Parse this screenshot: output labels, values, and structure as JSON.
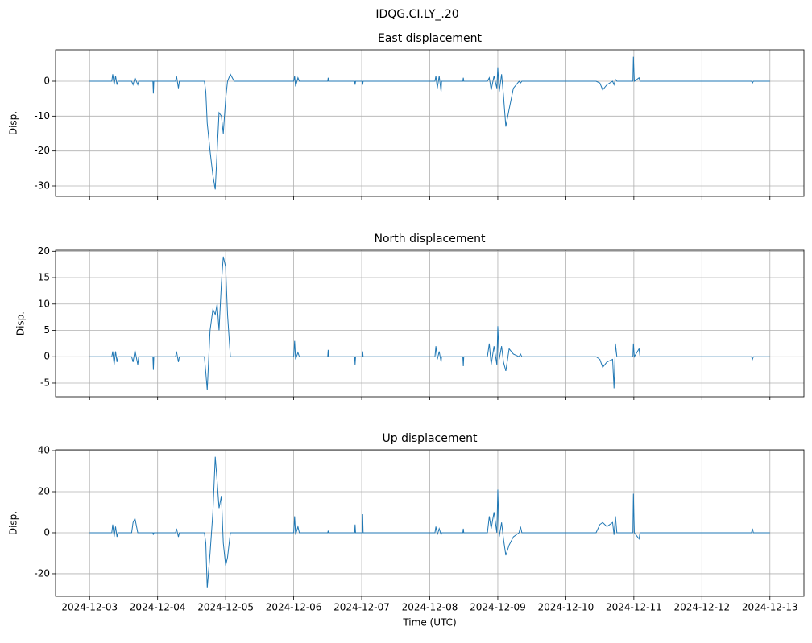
{
  "title": "IDQG.CI.LY_.20",
  "chart_data": [
    {
      "type": "line",
      "title": "East displacement",
      "ylabel": "Disp.",
      "grid": true,
      "xlim": [
        "2024-12-02T12:00",
        "2024-12-13T12:00"
      ],
      "xticks": [
        "2024-12-03",
        "2024-12-04",
        "2024-12-05",
        "2024-12-06",
        "2024-12-07",
        "2024-12-08",
        "2024-12-09",
        "2024-12-10",
        "2024-12-11",
        "2024-12-12",
        "2024-12-13"
      ],
      "ylim": [
        -33,
        9
      ],
      "yticks": [
        -30,
        -20,
        -10,
        0
      ],
      "x": [
        "2024-12-03T00:00",
        "2024-12-03T07:50",
        "2024-12-03T08:10",
        "2024-12-03T08:40",
        "2024-12-03T09:10",
        "2024-12-03T09:40",
        "2024-12-03T10:00",
        "2024-12-03T14:50",
        "2024-12-03T15:20",
        "2024-12-03T16:00",
        "2024-12-03T17:00",
        "2024-12-03T17:20",
        "2024-12-03T22:20",
        "2024-12-03T22:30",
        "2024-12-03T22:40",
        "2024-12-04T06:20",
        "2024-12-04T06:40",
        "2024-12-04T07:20",
        "2024-12-04T07:40",
        "2024-12-04T16:30",
        "2024-12-04T17:00",
        "2024-12-04T17:30",
        "2024-12-04T18:30",
        "2024-12-04T19:30",
        "2024-12-04T20:20",
        "2024-12-04T21:00",
        "2024-12-04T21:40",
        "2024-12-04T22:30",
        "2024-12-04T23:10",
        "2024-12-05T00:00",
        "2024-12-05T00:40",
        "2024-12-05T01:40",
        "2024-12-05T03:00",
        "2024-12-06T00:00",
        "2024-12-06T00:20",
        "2024-12-06T00:40",
        "2024-12-06T01:30",
        "2024-12-06T02:00",
        "2024-12-06T12:00",
        "2024-12-06T12:10",
        "2024-12-06T12:20",
        "2024-12-06T21:30",
        "2024-12-06T21:40",
        "2024-12-06T21:50",
        "2024-12-07T00:10",
        "2024-12-07T00:20",
        "2024-12-07T00:30",
        "2024-12-08T01:50",
        "2024-12-08T02:10",
        "2024-12-08T02:40",
        "2024-12-08T03:20",
        "2024-12-08T04:00",
        "2024-12-08T04:10",
        "2024-12-08T11:40",
        "2024-12-08T11:50",
        "2024-12-08T12:00",
        "2024-12-08T20:20",
        "2024-12-08T21:00",
        "2024-12-08T21:40",
        "2024-12-08T22:40",
        "2024-12-08T23:40",
        "2024-12-09T00:00",
        "2024-12-09T00:30",
        "2024-12-09T01:20",
        "2024-12-09T02:00",
        "2024-12-09T02:50",
        "2024-12-09T04:00",
        "2024-12-09T05:30",
        "2024-12-09T07:30",
        "2024-12-09T08:00",
        "2024-12-09T08:30",
        "2024-12-10T10:40",
        "2024-12-10T12:00",
        "2024-12-10T13:00",
        "2024-12-10T14:30",
        "2024-12-10T16:30",
        "2024-12-10T17:00",
        "2024-12-10T17:30",
        "2024-12-10T18:00",
        "2024-12-10T23:40",
        "2024-12-10T23:50",
        "2024-12-11T00:10",
        "2024-12-11T01:50",
        "2024-12-11T02:10",
        "2024-12-12T17:30",
        "2024-12-12T17:50",
        "2024-12-12T18:10",
        "2024-12-13T00:00"
      ],
      "series": [
        {
          "color": "#1f77b4",
          "values": [
            0,
            0,
            2,
            -1,
            1.5,
            -1,
            0,
            0,
            -1,
            1,
            -1,
            0,
            0,
            -3.5,
            0,
            0,
            1.5,
            -2,
            0,
            0,
            -3,
            -12,
            -20,
            -27,
            -31,
            -20,
            -9,
            -10,
            -15,
            -5,
            0,
            2,
            0,
            0,
            1.5,
            -1.5,
            1,
            0,
            0,
            1,
            0,
            0,
            -1,
            0,
            0,
            -1,
            0,
            0,
            1.5,
            -2,
            1.5,
            -3,
            0,
            0,
            1,
            0,
            0,
            1,
            -2.5,
            1.5,
            -2,
            4,
            -3,
            2,
            -4,
            -13,
            -8,
            -2,
            0,
            -0.5,
            0,
            0,
            -0.5,
            -2.5,
            -1,
            0,
            -1,
            0.5,
            0,
            0,
            7,
            0,
            1,
            0,
            0,
            -0.5,
            0,
            0
          ]
        }
      ]
    },
    {
      "type": "line",
      "title": "North displacement",
      "ylabel": "Disp.",
      "grid": true,
      "xlim": [
        "2024-12-02T12:00",
        "2024-12-13T12:00"
      ],
      "xticks": [
        "2024-12-03",
        "2024-12-04",
        "2024-12-05",
        "2024-12-06",
        "2024-12-07",
        "2024-12-08",
        "2024-12-09",
        "2024-12-10",
        "2024-12-11",
        "2024-12-12",
        "2024-12-13"
      ],
      "ylim": [
        -7.6,
        20.2
      ],
      "yticks": [
        -5,
        0,
        5,
        10,
        15,
        20
      ],
      "x": [
        "2024-12-03T00:00",
        "2024-12-03T07:50",
        "2024-12-03T08:10",
        "2024-12-03T08:40",
        "2024-12-03T09:10",
        "2024-12-03T09:40",
        "2024-12-03T10:00",
        "2024-12-03T14:50",
        "2024-12-03T15:20",
        "2024-12-03T16:00",
        "2024-12-03T17:00",
        "2024-12-03T17:20",
        "2024-12-03T22:20",
        "2024-12-03T22:30",
        "2024-12-03T22:40",
        "2024-12-04T06:20",
        "2024-12-04T06:40",
        "2024-12-04T07:20",
        "2024-12-04T07:40",
        "2024-12-04T16:30",
        "2024-12-04T17:00",
        "2024-12-04T17:30",
        "2024-12-04T18:30",
        "2024-12-04T19:30",
        "2024-12-04T20:20",
        "2024-12-04T21:00",
        "2024-12-04T21:40",
        "2024-12-04T22:30",
        "2024-12-04T23:10",
        "2024-12-05T00:00",
        "2024-12-05T00:40",
        "2024-12-05T01:40",
        "2024-12-05T03:00",
        "2024-12-06T00:00",
        "2024-12-06T00:20",
        "2024-12-06T00:40",
        "2024-12-06T01:30",
        "2024-12-06T02:00",
        "2024-12-06T12:00",
        "2024-12-06T12:10",
        "2024-12-06T12:20",
        "2024-12-06T21:30",
        "2024-12-06T21:40",
        "2024-12-06T21:50",
        "2024-12-07T00:10",
        "2024-12-07T00:20",
        "2024-12-07T00:30",
        "2024-12-08T01:50",
        "2024-12-08T02:10",
        "2024-12-08T02:40",
        "2024-12-08T03:20",
        "2024-12-08T04:00",
        "2024-12-08T04:10",
        "2024-12-08T11:40",
        "2024-12-08T11:50",
        "2024-12-08T12:00",
        "2024-12-08T20:20",
        "2024-12-08T21:00",
        "2024-12-08T21:40",
        "2024-12-08T22:40",
        "2024-12-08T23:40",
        "2024-12-09T00:00",
        "2024-12-09T00:30",
        "2024-12-09T01:20",
        "2024-12-09T02:00",
        "2024-12-09T02:50",
        "2024-12-09T04:00",
        "2024-12-09T05:30",
        "2024-12-09T07:30",
        "2024-12-09T08:00",
        "2024-12-09T08:30",
        "2024-12-10T10:40",
        "2024-12-10T12:00",
        "2024-12-10T13:00",
        "2024-12-10T14:30",
        "2024-12-10T16:30",
        "2024-12-10T17:00",
        "2024-12-10T17:30",
        "2024-12-10T18:00",
        "2024-12-10T23:40",
        "2024-12-10T23:50",
        "2024-12-11T00:10",
        "2024-12-11T01:50",
        "2024-12-11T02:10",
        "2024-12-12T17:30",
        "2024-12-12T17:50",
        "2024-12-12T18:10",
        "2024-12-13T00:00"
      ],
      "series": [
        {
          "color": "#1f77b4",
          "values": [
            0,
            0,
            1,
            -1.5,
            1,
            -1,
            0,
            0,
            -1,
            1.2,
            -1.5,
            0,
            0,
            -2.5,
            0,
            0,
            1,
            -1,
            0,
            0,
            -3,
            -6.3,
            5,
            9,
            8,
            10,
            5,
            14,
            19,
            17,
            8,
            0,
            0,
            0,
            3,
            -0.5,
            0.8,
            0,
            0,
            1.3,
            0,
            0,
            -1.5,
            0,
            0,
            1,
            0,
            0,
            2,
            -0.5,
            1,
            -1,
            0,
            0,
            -1.8,
            0,
            0,
            2.5,
            -1.5,
            2,
            -1.5,
            5.8,
            -0.5,
            2,
            -1,
            -2.7,
            1.5,
            0.5,
            0,
            0.5,
            0,
            0,
            -0.5,
            -2,
            -1,
            -0.5,
            -6,
            2.5,
            0,
            0,
            2.5,
            0,
            1.5,
            0,
            0,
            -0.5,
            0,
            0
          ]
        }
      ]
    },
    {
      "type": "line",
      "title": "Up displacement",
      "ylabel": "Disp.",
      "xlabel": "Time (UTC)",
      "grid": true,
      "xlim": [
        "2024-12-02T12:00",
        "2024-12-13T12:00"
      ],
      "xticks": [
        "2024-12-03",
        "2024-12-04",
        "2024-12-05",
        "2024-12-06",
        "2024-12-07",
        "2024-12-08",
        "2024-12-09",
        "2024-12-10",
        "2024-12-11",
        "2024-12-12",
        "2024-12-13"
      ],
      "ylim": [
        -31,
        40.4
      ],
      "yticks": [
        -20,
        0,
        20,
        40
      ],
      "x": [
        "2024-12-03T00:00",
        "2024-12-03T07:50",
        "2024-12-03T08:10",
        "2024-12-03T08:40",
        "2024-12-03T09:10",
        "2024-12-03T09:40",
        "2024-12-03T10:00",
        "2024-12-03T14:50",
        "2024-12-03T15:20",
        "2024-12-03T16:00",
        "2024-12-03T17:00",
        "2024-12-03T17:20",
        "2024-12-03T22:20",
        "2024-12-03T22:30",
        "2024-12-03T22:40",
        "2024-12-04T06:20",
        "2024-12-04T06:40",
        "2024-12-04T07:20",
        "2024-12-04T07:40",
        "2024-12-04T16:30",
        "2024-12-04T17:00",
        "2024-12-04T17:30",
        "2024-12-04T18:30",
        "2024-12-04T19:30",
        "2024-12-04T20:20",
        "2024-12-04T21:00",
        "2024-12-04T21:40",
        "2024-12-04T22:30",
        "2024-12-04T23:10",
        "2024-12-05T00:00",
        "2024-12-05T00:40",
        "2024-12-05T01:40",
        "2024-12-05T03:00",
        "2024-12-06T00:00",
        "2024-12-06T00:20",
        "2024-12-06T00:40",
        "2024-12-06T01:30",
        "2024-12-06T02:00",
        "2024-12-06T12:00",
        "2024-12-06T12:10",
        "2024-12-06T12:20",
        "2024-12-06T21:30",
        "2024-12-06T21:40",
        "2024-12-06T21:50",
        "2024-12-07T00:10",
        "2024-12-07T00:20",
        "2024-12-07T00:30",
        "2024-12-08T01:50",
        "2024-12-08T02:10",
        "2024-12-08T02:40",
        "2024-12-08T03:20",
        "2024-12-08T04:00",
        "2024-12-08T04:10",
        "2024-12-08T11:40",
        "2024-12-08T11:50",
        "2024-12-08T12:00",
        "2024-12-08T20:20",
        "2024-12-08T21:00",
        "2024-12-08T21:40",
        "2024-12-08T22:40",
        "2024-12-08T23:40",
        "2024-12-09T00:00",
        "2024-12-09T00:30",
        "2024-12-09T01:20",
        "2024-12-09T02:00",
        "2024-12-09T02:50",
        "2024-12-09T04:00",
        "2024-12-09T05:30",
        "2024-12-09T07:30",
        "2024-12-09T08:00",
        "2024-12-09T08:30",
        "2024-12-10T10:40",
        "2024-12-10T12:00",
        "2024-12-10T13:00",
        "2024-12-10T14:30",
        "2024-12-10T16:30",
        "2024-12-10T17:00",
        "2024-12-10T17:30",
        "2024-12-10T18:00",
        "2024-12-10T23:40",
        "2024-12-10T23:50",
        "2024-12-11T00:10",
        "2024-12-11T01:50",
        "2024-12-11T02:10",
        "2024-12-12T17:30",
        "2024-12-12T17:50",
        "2024-12-12T18:10",
        "2024-12-13T00:00"
      ],
      "series": [
        {
          "color": "#1f77b4",
          "values": [
            0,
            0,
            4,
            -2,
            3,
            -2,
            0,
            0,
            5,
            7,
            0,
            0,
            0,
            -1,
            0,
            0,
            2,
            -2,
            0,
            0,
            -5,
            -27,
            -10,
            10,
            37,
            25,
            12,
            18,
            -5,
            -16,
            -12,
            0,
            0,
            0,
            8,
            -1,
            3,
            0,
            0,
            1,
            0,
            0,
            4,
            0,
            0,
            9,
            0,
            0,
            3,
            -1,
            2,
            -1,
            0,
            0,
            2,
            0,
            0,
            8,
            2,
            10,
            0,
            21,
            -2,
            5,
            -3,
            -11,
            -6,
            -2,
            0,
            3,
            0,
            0,
            4,
            5,
            3,
            5,
            -1,
            8,
            0,
            0,
            19,
            0,
            -3,
            0,
            0,
            2,
            0,
            0
          ]
        }
      ]
    }
  ]
}
